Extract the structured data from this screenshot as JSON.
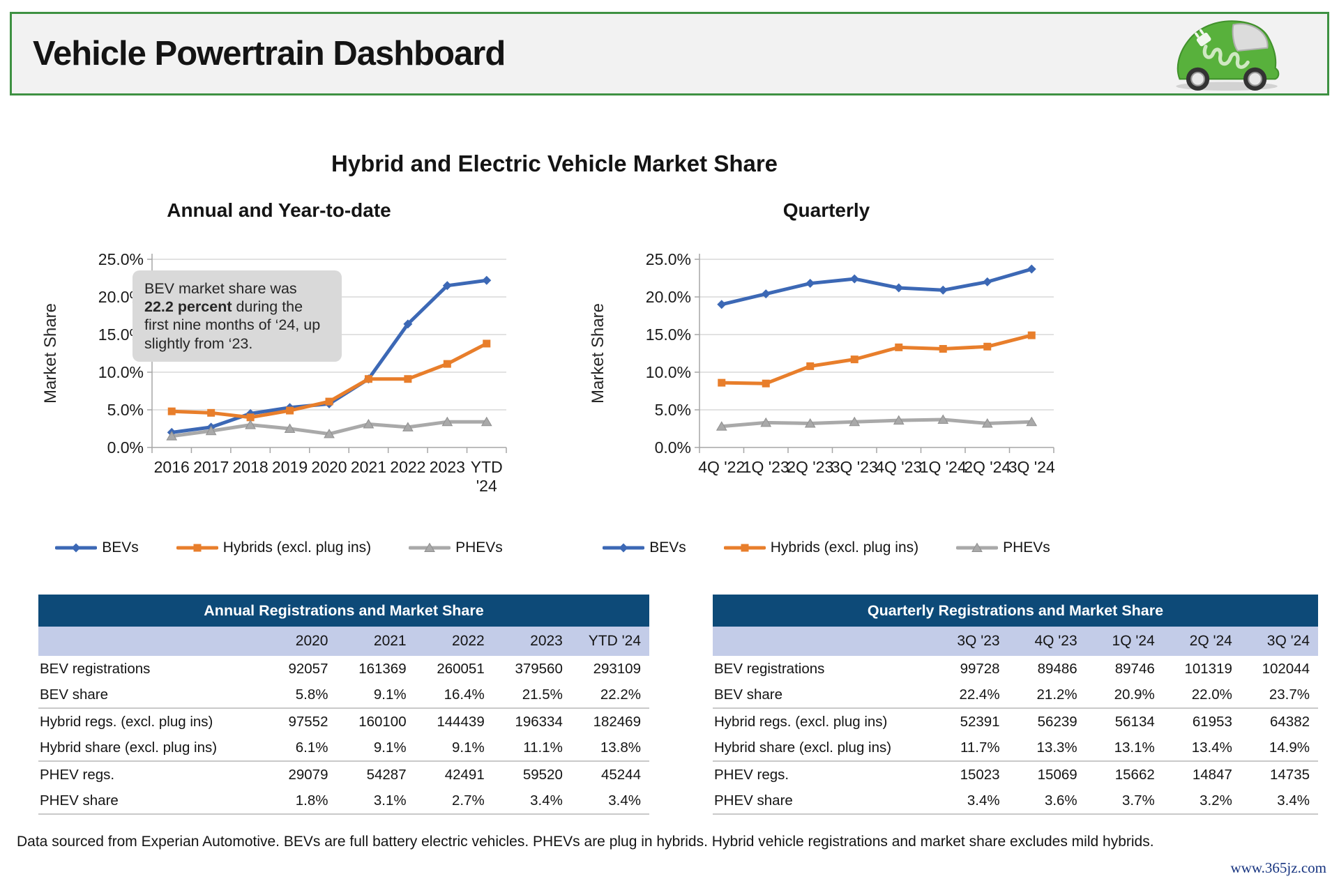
{
  "header": {
    "title": "Vehicle Powertrain Dashboard",
    "logo_icon": "green-electric-car-icon"
  },
  "main_title": "Hybrid and Electric Vehicle Market Share",
  "annotation": {
    "before": "BEV market share was ",
    "bold": "22.2 percent",
    "after": " during the first nine months of ‘24, up slightly from ‘23."
  },
  "colors": {
    "bev": "#3c68b5",
    "hybrid": "#e87e2b",
    "phev": "#a9a9a9",
    "grid": "#d9d9d9",
    "axis": "#a6a6a6",
    "table_header_bg": "#0d4a78",
    "table_subheader_bg": "#c3cce8",
    "header_border_green": "#3e9142",
    "annotation_bg": "#d9d9d9",
    "watermark_blue": "#16337f"
  },
  "chart_data": [
    {
      "type": "line",
      "title": "Annual and Year-to-date",
      "xlabel": "",
      "ylabel": "Market Share",
      "ylim": [
        0,
        25
      ],
      "ytick_step": 5,
      "ytick_format": "percent1",
      "grid": true,
      "legend_position": "bottom",
      "categories": [
        "2016",
        "2017",
        "2018",
        "2019",
        "2020",
        "2021",
        "2022",
        "2023",
        "YTD\n'24"
      ],
      "series": [
        {
          "name": "BEVs",
          "marker": "diamond",
          "values": [
            2.0,
            2.7,
            4.5,
            5.3,
            5.8,
            9.1,
            16.4,
            21.5,
            22.2
          ]
        },
        {
          "name": "Hybrids (excl. plug ins)",
          "marker": "square",
          "values": [
            4.8,
            4.6,
            4.0,
            4.9,
            6.1,
            9.1,
            9.1,
            11.1,
            13.8
          ]
        },
        {
          "name": "PHEVs",
          "marker": "triangle",
          "values": [
            1.5,
            2.2,
            3.0,
            2.5,
            1.8,
            3.1,
            2.7,
            3.4,
            3.4
          ]
        }
      ]
    },
    {
      "type": "line",
      "title": "Quarterly",
      "xlabel": "",
      "ylabel": "Market Share",
      "ylim": [
        0,
        25
      ],
      "ytick_step": 5,
      "ytick_format": "percent1",
      "grid": true,
      "legend_position": "bottom",
      "categories": [
        "4Q '22",
        "1Q '23",
        "2Q '23",
        "3Q '23",
        "4Q '23",
        "1Q '24",
        "2Q '24",
        "3Q '24"
      ],
      "series": [
        {
          "name": "BEVs",
          "marker": "diamond",
          "values": [
            19.0,
            20.4,
            21.8,
            22.4,
            21.2,
            20.9,
            22.0,
            23.7
          ]
        },
        {
          "name": "Hybrids (excl. plug ins)",
          "marker": "square",
          "values": [
            8.6,
            8.5,
            10.8,
            11.7,
            13.3,
            13.1,
            13.4,
            14.9
          ]
        },
        {
          "name": "PHEVs",
          "marker": "triangle",
          "values": [
            2.8,
            3.3,
            3.2,
            3.4,
            3.6,
            3.7,
            3.2,
            3.4
          ]
        }
      ]
    }
  ],
  "tables": {
    "annual": {
      "title": "Annual Registrations and Market Share",
      "columns": [
        "2020",
        "2021",
        "2022",
        "2023",
        "YTD '24"
      ],
      "rows": [
        {
          "label": "BEV registrations",
          "values": [
            "92057",
            "161369",
            "260051",
            "379560",
            "293109"
          ]
        },
        {
          "label": "BEV share",
          "values": [
            "5.8%",
            "9.1%",
            "16.4%",
            "21.5%",
            "22.2%"
          ]
        },
        {
          "label": "Hybrid regs. (excl. plug ins)",
          "values": [
            "97552",
            "160100",
            "144439",
            "196334",
            "182469"
          ],
          "group_start": true
        },
        {
          "label": "Hybrid share (excl. plug ins)",
          "values": [
            "6.1%",
            "9.1%",
            "9.1%",
            "11.1%",
            "13.8%"
          ]
        },
        {
          "label": "PHEV regs.",
          "values": [
            "29079",
            "54287",
            "42491",
            "59520",
            "45244"
          ],
          "group_start": true
        },
        {
          "label": "PHEV share",
          "values": [
            "1.8%",
            "3.1%",
            "2.7%",
            "3.4%",
            "3.4%"
          ]
        }
      ]
    },
    "quarterly": {
      "title": "Quarterly Registrations and Market Share",
      "columns": [
        "3Q '23",
        "4Q '23",
        "1Q '24",
        "2Q '24",
        "3Q '24"
      ],
      "rows": [
        {
          "label": "BEV registrations",
          "values": [
            "99728",
            "89486",
            "89746",
            "101319",
            "102044"
          ]
        },
        {
          "label": "BEV share",
          "values": [
            "22.4%",
            "21.2%",
            "20.9%",
            "22.0%",
            "23.7%"
          ]
        },
        {
          "label": "Hybrid regs. (excl. plug ins)",
          "values": [
            "52391",
            "56239",
            "56134",
            "61953",
            "64382"
          ],
          "group_start": true
        },
        {
          "label": "Hybrid share (excl. plug ins)",
          "values": [
            "11.7%",
            "13.3%",
            "13.1%",
            "13.4%",
            "14.9%"
          ]
        },
        {
          "label": "PHEV regs.",
          "values": [
            "15023",
            "15069",
            "15662",
            "14847",
            "14735"
          ],
          "group_start": true
        },
        {
          "label": "PHEV share",
          "values": [
            "3.4%",
            "3.6%",
            "3.7%",
            "3.2%",
            "3.4%"
          ]
        }
      ]
    }
  },
  "footer": "Data sourced from Experian Automotive. BEVs are full battery electric vehicles. PHEVs are plug in hybrids. Hybrid vehicle registrations and market share excludes mild hybrids.",
  "watermark": "www.365jz.com"
}
